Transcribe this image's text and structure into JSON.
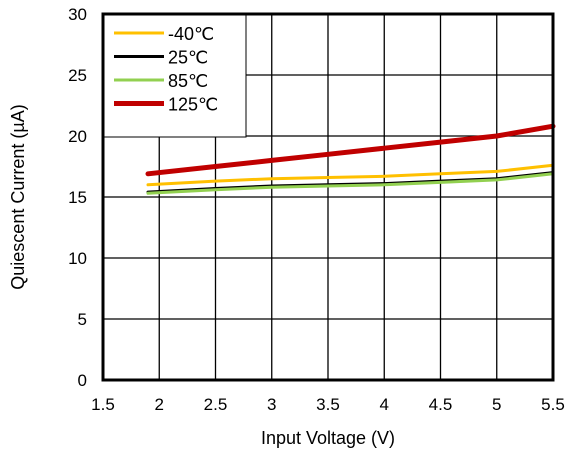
{
  "chart_data": {
    "type": "line",
    "title": "",
    "xlabel": "Input Voltage (V)",
    "ylabel": "Quiescent Current (µA)",
    "xlim": [
      1.5,
      5.5
    ],
    "ylim": [
      0,
      30
    ],
    "xticks": [
      1.5,
      2,
      2.5,
      3,
      3.5,
      4,
      4.5,
      5,
      5.5
    ],
    "yticks": [
      0,
      5,
      10,
      15,
      20,
      25,
      30
    ],
    "grid": true,
    "legend_position": "top-left",
    "series": [
      {
        "name": "-40℃",
        "color": "#FFC000",
        "x": [
          1.9,
          2.5,
          3.0,
          3.5,
          4.0,
          4.5,
          5.0,
          5.5
        ],
        "y": [
          16.0,
          16.3,
          16.5,
          16.6,
          16.7,
          16.9,
          17.1,
          17.6
        ]
      },
      {
        "name": "25℃",
        "color": "#000000",
        "x": [
          1.9,
          2.5,
          3.0,
          3.5,
          4.0,
          4.5,
          5.0,
          5.5
        ],
        "y": [
          15.4,
          15.7,
          15.9,
          16.0,
          16.1,
          16.3,
          16.5,
          17.0
        ]
      },
      {
        "name": "85℃",
        "color": "#92D050",
        "x": [
          1.9,
          2.5,
          3.0,
          3.5,
          4.0,
          4.5,
          5.0,
          5.5
        ],
        "y": [
          15.3,
          15.6,
          15.8,
          15.9,
          16.0,
          16.2,
          16.4,
          16.9
        ]
      },
      {
        "name": "125℃",
        "color": "#C00000",
        "x": [
          1.9,
          2.5,
          3.0,
          3.5,
          4.0,
          4.5,
          5.0,
          5.5
        ],
        "y": [
          16.9,
          17.5,
          18.0,
          18.5,
          19.0,
          19.5,
          20.0,
          20.8
        ]
      }
    ]
  }
}
